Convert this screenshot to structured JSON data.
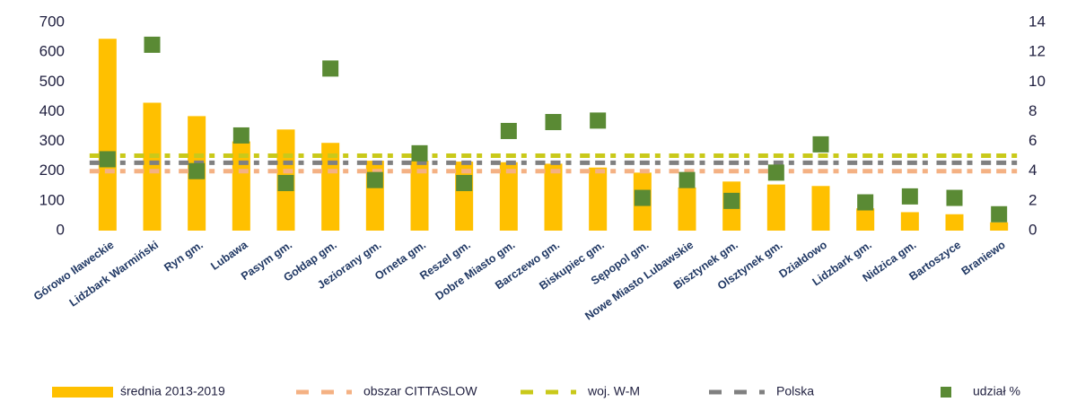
{
  "chart_data": {
    "type": "bar",
    "categories": [
      "Górowo Iławeckie",
      "Lidzbark Warmiński",
      "Ryn gm.",
      "Lubawa",
      "Pasym gm.",
      "Gołdap gm.",
      "Jeziorany gm.",
      "Orneta gm.",
      "Reszel gm.",
      "Dobre Miasto gm.",
      "Barczewo gm.",
      "Biskupiec gm.",
      "Sępopol gm.",
      "Nowe Miasto Lubawskie",
      "Bisztynek gm.",
      "Olsztynek gm.",
      "Działdowo",
      "Lidzbark gm.",
      "Nidzica gm.",
      "Bartoszyce",
      "Braniewo"
    ],
    "series": [
      {
        "name": "średnia 2013-2019",
        "type": "bar",
        "color": "#ffc000",
        "values": [
          645,
          430,
          385,
          300,
          340,
          295,
          235,
          235,
          232,
          230,
          225,
          212,
          195,
          145,
          165,
          155,
          150,
          75,
          62,
          55,
          28
        ]
      },
      {
        "name": "obszar CITTASLOW",
        "type": "line",
        "color": "#f4b183",
        "values": [
          200,
          200,
          200,
          200,
          200,
          200,
          200,
          200,
          200,
          200,
          200,
          200,
          200,
          200,
          200,
          200,
          200,
          200,
          200,
          200,
          200
        ]
      },
      {
        "name": "woj. W-M",
        "type": "line",
        "color": "#c9c91a",
        "values": [
          252,
          252,
          252,
          252,
          252,
          252,
          252,
          252,
          252,
          252,
          252,
          252,
          252,
          252,
          252,
          252,
          252,
          252,
          252,
          252,
          252
        ]
      },
      {
        "name": "Polska",
        "type": "line",
        "color": "#808080",
        "values": [
          228,
          228,
          228,
          228,
          228,
          228,
          228,
          228,
          228,
          228,
          228,
          228,
          228,
          228,
          228,
          228,
          228,
          228,
          228,
          228,
          228
        ]
      },
      {
        "name": "udział %",
        "type": "scatter",
        "axis": "y2",
        "color": "#5a8a34",
        "values": [
          4.8,
          12.5,
          4.0,
          6.4,
          3.2,
          10.9,
          3.4,
          5.2,
          3.2,
          6.7,
          7.3,
          7.4,
          2.2,
          3.4,
          2.0,
          3.9,
          5.8,
          1.9,
          2.3,
          2.2,
          1.1
        ]
      }
    ],
    "ylim": [
      0,
      700
    ],
    "yticks": [
      0,
      100,
      200,
      300,
      400,
      500,
      600,
      700
    ],
    "y2lim": [
      0,
      14
    ],
    "y2ticks": [
      0,
      2,
      4,
      6,
      8,
      10,
      12,
      14
    ],
    "legend": "bottom"
  }
}
